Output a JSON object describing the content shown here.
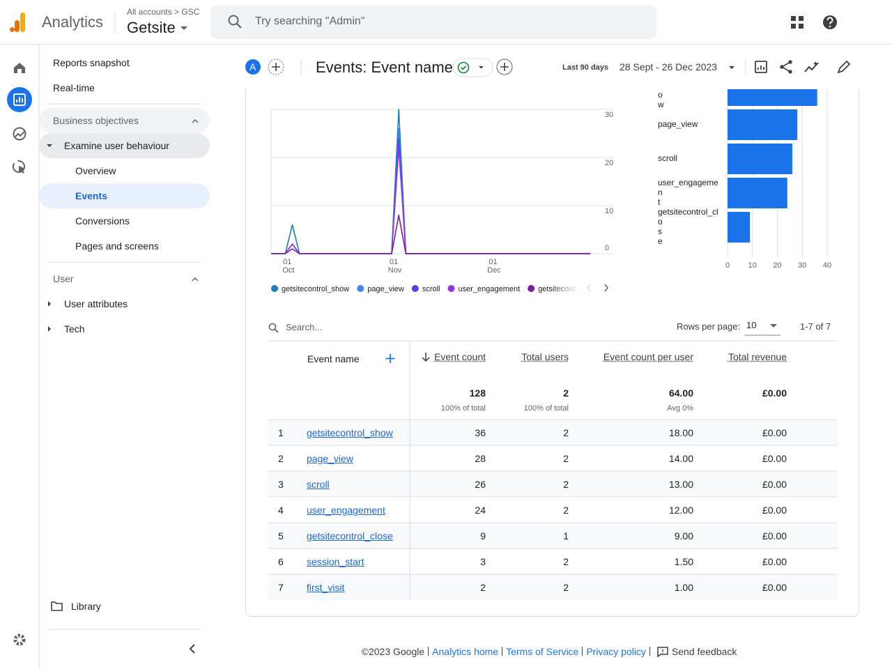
{
  "top_bar": {
    "product": "Analytics",
    "breadcrumb": "All accounts > GSC",
    "property": "Getsite",
    "search_placeholder": "Try searching \"Admin\""
  },
  "nav": {
    "reports_snapshot": "Reports snapshot",
    "realtime": "Real-time",
    "business_objectives": "Business objectives",
    "examine": "Examine user behaviour",
    "examine_items": [
      "Overview",
      "Events",
      "Conversions",
      "Pages and screens"
    ],
    "user": "User",
    "user_items": [
      "User attributes",
      "Tech"
    ],
    "library": "Library"
  },
  "report": {
    "avatar": "A",
    "title": "Events: Event name",
    "date_range_label": "Last 90 days",
    "date_range": "28 Sept - 26 Dec 2023"
  },
  "chart_data": [
    {
      "type": "line",
      "categories": [
        null,
        null,
        "01 Oct",
        null,
        null,
        null,
        null,
        null,
        null,
        null,
        null,
        null,
        null,
        null,
        null,
        null,
        null,
        "01 Nov",
        null,
        null,
        null,
        null,
        null,
        null,
        null,
        null,
        null,
        null,
        null,
        null,
        null,
        "01 Dec",
        null,
        null,
        null,
        null,
        null,
        null,
        null,
        null,
        null,
        null,
        null,
        null,
        null,
        null
      ],
      "series": [
        {
          "name": "getsitecontrol_show",
          "color": "#1a7fc1",
          "values": [
            0,
            0,
            0,
            6,
            0,
            0,
            0,
            0,
            0,
            0,
            0,
            0,
            0,
            0,
            0,
            0,
            0,
            0,
            30,
            0,
            0,
            0,
            0,
            0,
            0,
            0,
            0,
            0,
            0,
            0,
            0,
            0,
            0,
            0,
            0,
            0,
            0,
            0,
            0,
            0,
            0,
            0,
            0,
            0,
            0,
            0
          ]
        },
        {
          "name": "page_view",
          "color": "#4285f4",
          "values": [
            0,
            0,
            0,
            2,
            0,
            0,
            0,
            0,
            0,
            0,
            0,
            0,
            0,
            0,
            0,
            0,
            0,
            0,
            26,
            0,
            0,
            0,
            0,
            0,
            0,
            0,
            0,
            0,
            0,
            0,
            0,
            0,
            0,
            0,
            0,
            0,
            0,
            0,
            0,
            0,
            0,
            0,
            0,
            0,
            0,
            0
          ]
        },
        {
          "name": "scroll",
          "color": "#4f46e5",
          "values": [
            0,
            0,
            0,
            2,
            0,
            0,
            0,
            0,
            0,
            0,
            0,
            0,
            0,
            0,
            0,
            0,
            0,
            0,
            24,
            0,
            0,
            0,
            0,
            0,
            0,
            0,
            0,
            0,
            0,
            0,
            0,
            0,
            0,
            0,
            0,
            0,
            0,
            0,
            0,
            0,
            0,
            0,
            0,
            0,
            0,
            0
          ]
        },
        {
          "name": "user_engagement",
          "color": "#9334e6",
          "values": [
            0,
            0,
            0,
            2,
            0,
            0,
            0,
            0,
            0,
            0,
            0,
            0,
            0,
            0,
            0,
            0,
            0,
            0,
            22,
            0,
            0,
            0,
            0,
            0,
            0,
            0,
            0,
            0,
            0,
            0,
            0,
            0,
            0,
            0,
            0,
            0,
            0,
            0,
            0,
            0,
            0,
            0,
            0,
            0,
            0,
            0
          ]
        },
        {
          "name": "getsitecontrol_close",
          "color": "#7b1fa2",
          "values": [
            0,
            0,
            0,
            1,
            0,
            0,
            0,
            0,
            0,
            0,
            0,
            0,
            0,
            0,
            0,
            0,
            0,
            0,
            8,
            0,
            0,
            0,
            0,
            0,
            0,
            0,
            0,
            0,
            0,
            0,
            0,
            0,
            0,
            0,
            0,
            0,
            0,
            0,
            0,
            0,
            0,
            0,
            0,
            0,
            0,
            0
          ]
        }
      ],
      "ylim": [
        0,
        30
      ],
      "yticks": [
        0,
        10,
        20,
        30
      ],
      "grid": true
    },
    {
      "type": "bar",
      "orientation": "horizontal",
      "categories": [
        "getsitecontrol_show",
        "page_view",
        "scroll",
        "user_engagement",
        "getsitecontrol_close"
      ],
      "values": [
        36,
        28,
        26,
        24,
        9
      ],
      "color": "#1a73e8",
      "xlim": [
        0,
        40
      ],
      "xticks": [
        0,
        10,
        20,
        30,
        40
      ],
      "grid": true
    }
  ],
  "table": {
    "search_placeholder": "Search...",
    "rows_per_page_label": "Rows per page:",
    "rows_per_page": "10",
    "pagination": "1-7 of 7",
    "columns": [
      "Event name",
      "Event count",
      "Total users",
      "Event count per user",
      "Total revenue"
    ],
    "totals": [
      "128",
      "2",
      "64.00",
      "£0.00"
    ],
    "totals_notes": [
      "100% of total",
      "100% of total",
      "Avg 0%"
    ],
    "rows": [
      [
        "1",
        "getsitecontrol_show",
        "36",
        "2",
        "18.00",
        "£0.00"
      ],
      [
        "2",
        "page_view",
        "28",
        "2",
        "14.00",
        "£0.00"
      ],
      [
        "3",
        "scroll",
        "26",
        "2",
        "13.00",
        "£0.00"
      ],
      [
        "4",
        "user_engagement",
        "24",
        "2",
        "12.00",
        "£0.00"
      ],
      [
        "5",
        "getsitecontrol_close",
        "9",
        "1",
        "9.00",
        "£0.00"
      ],
      [
        "6",
        "session_start",
        "3",
        "2",
        "1.50",
        "£0.00"
      ],
      [
        "7",
        "first_visit",
        "2",
        "2",
        "1.00",
        "£0.00"
      ]
    ]
  },
  "footer": {
    "copyright": "©2023 Google",
    "links": [
      "Analytics home",
      "Terms of Service",
      "Privacy policy"
    ],
    "feedback": "Send feedback"
  }
}
